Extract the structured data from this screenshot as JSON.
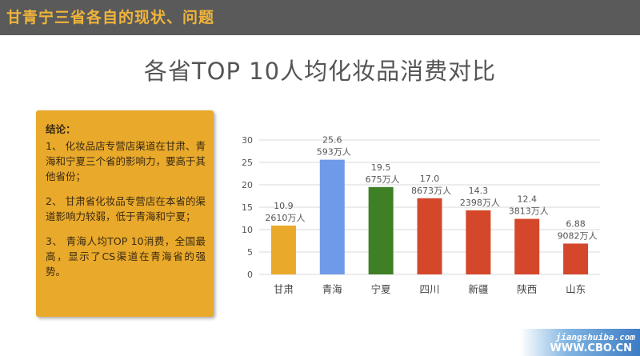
{
  "header": {
    "title": "甘青宁三省各自的现状、问题"
  },
  "slide": {
    "title": "各省TOP 10人均化妆品消费对比"
  },
  "conclusion": {
    "heading": "结论：",
    "items": [
      "1、 化妆品店专营店渠道在甘肃、青海和宁夏三个省的影响力，要高于其他省份；",
      "2、 甘肃省化妆品专营店在本省的渠道影响力较弱，低于青海和宁夏；",
      "3、 青海人均TOP  10消费，全国最高，显示了CS渠道在青海省的强势。"
    ]
  },
  "chart_data": {
    "type": "bar",
    "title": "",
    "xlabel": "",
    "ylabel": "",
    "categories": [
      "甘肃",
      "青海",
      "宁夏",
      "四川",
      "新疆",
      "陕西",
      "山东"
    ],
    "values": [
      10.9,
      25.6,
      19.5,
      17.0,
      14.3,
      12.4,
      6.88
    ],
    "value_labels": [
      "10.9",
      "25.6",
      "19.5",
      "17.0",
      "14.3",
      "12.4",
      "6.88"
    ],
    "population_labels": [
      "2610万人",
      "593万人",
      "675万人",
      "8673万人",
      "2398万人",
      "3813万人",
      "9082万人"
    ],
    "bar_colors": [
      "#e9a92b",
      "#6f9ae9",
      "#3f7f26",
      "#d4472b",
      "#d4472b",
      "#d4472b",
      "#d4472b"
    ],
    "ylim": [
      0,
      30
    ],
    "yticks": [
      0,
      5,
      10,
      15,
      20,
      25,
      30
    ],
    "grid": true,
    "legend": "none"
  },
  "watermark": {
    "url1": "jiangshuiba.com",
    "url2": "WWW.CBO.CN"
  }
}
